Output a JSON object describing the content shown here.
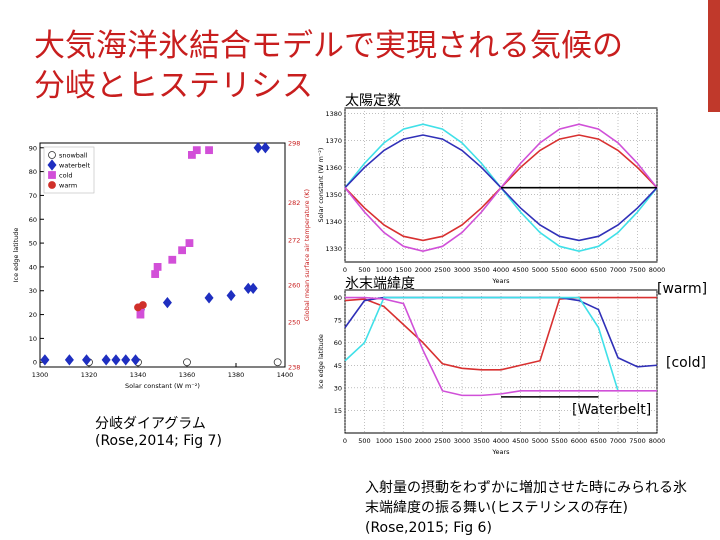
{
  "slide": {
    "title_line1": "大気海洋氷結合モデルで実現される気候の",
    "title_line2": "分岐とヒステリシス",
    "label_solar": "太陽定数",
    "label_ice": "氷末端緯度",
    "tag_warm": "[warm]",
    "tag_cold": "[cold]",
    "tag_waterbelt": "[Waterbelt]",
    "caption_left_1": "分岐ダイアグラム",
    "caption_left_2": "(Rose,2014; Fig 7)",
    "caption_right": "入射量の摂動をわずかに増加させた時にみられる氷末端緯度の振る舞い(ヒステリシスの存在) (Rose,2015; Fig 6)"
  },
  "chart_data": [
    {
      "type": "scatter",
      "xlabel": "Solar constant (W m⁻²)",
      "ylabel": "Ice edge latitude",
      "y2label": "Global mean surface air temperature (K)",
      "xlim": [
        1300,
        1400
      ],
      "ylim": [
        -2,
        92
      ],
      "xticks": [
        1300,
        1320,
        1340,
        1360,
        1380,
        1400
      ],
      "yticks": [
        0,
        10,
        20,
        30,
        40,
        50,
        60,
        70,
        80,
        90
      ],
      "y2lim": [
        238,
        298
      ],
      "y2ticks": [
        238,
        250,
        260,
        272,
        282,
        298
      ],
      "legend": "upper-left",
      "series": [
        {
          "name": "snowball",
          "color": "#ffffff",
          "marker": "circle",
          "x": [
            1320,
            1340,
            1360,
            1397
          ],
          "values": [
            0,
            0,
            0,
            0
          ]
        },
        {
          "name": "waterbelt",
          "color": "#1f2fc0",
          "marker": "diamond",
          "x": [
            1302,
            1312,
            1319,
            1327,
            1331,
            1335,
            1339,
            1341,
            1352,
            1369,
            1378,
            1385,
            1387,
            1389,
            1392
          ],
          "values": [
            1,
            1,
            1,
            1,
            1,
            1,
            1,
            22,
            25,
            27,
            28,
            31,
            31,
            90,
            90
          ]
        },
        {
          "name": "cold",
          "color": "#d24fd8",
          "marker": "square",
          "x": [
            1341,
            1341,
            1347,
            1348,
            1354,
            1358,
            1361,
            1362,
            1364,
            1369
          ],
          "values": [
            20,
            23,
            37,
            40,
            43,
            47,
            50,
            87,
            89,
            89
          ]
        },
        {
          "name": "warm",
          "color": "#d0302a",
          "marker": "circle",
          "x": [
            1340,
            1342
          ],
          "values": [
            23,
            24
          ]
        }
      ]
    },
    {
      "type": "line",
      "xlabel": "Years",
      "ylabel": "Solar constant (W m⁻²)",
      "xlim": [
        0,
        8000
      ],
      "ylim": [
        1325,
        1382
      ],
      "xticks": [
        0,
        500,
        1000,
        1500,
        2000,
        2500,
        3000,
        3500,
        4000,
        4500,
        5000,
        5500,
        6000,
        6500,
        7000,
        7500,
        8000
      ],
      "yticks": [
        1330,
        1340,
        1350,
        1360,
        1370,
        1380
      ],
      "x": [
        0,
        500,
        1000,
        1500,
        2000,
        2500,
        3000,
        3500,
        4000,
        4500,
        5000,
        5500,
        6000,
        6500,
        7000,
        7500,
        8000
      ],
      "series": [
        {
          "color": "#40e0e8",
          "values": [
            1352.5,
            1361.5,
            1369.1,
            1374.2,
            1376,
            1374.2,
            1369.1,
            1361.5,
            1352.5,
            1343.5,
            1335.9,
            1330.8,
            1329,
            1330.8,
            1335.9,
            1343.5,
            1352.5
          ]
        },
        {
          "color": "#3030b8",
          "values": [
            1352.5,
            1360,
            1366.3,
            1370.5,
            1372,
            1370.5,
            1366.3,
            1360,
            1352.5,
            1345,
            1338.7,
            1334.5,
            1333,
            1334.5,
            1338.7,
            1345,
            1352.5
          ]
        },
        {
          "color": "#d83030",
          "values": [
            1352.5,
            1345,
            1338.7,
            1334.5,
            1333,
            1334.5,
            1338.7,
            1345,
            1352.5,
            1360,
            1366.3,
            1370.5,
            1372,
            1370.5,
            1366.3,
            1360,
            1352.5
          ]
        },
        {
          "color": "#d050d8",
          "values": [
            1352.5,
            1343.5,
            1335.9,
            1330.8,
            1329,
            1330.8,
            1335.9,
            1343.5,
            1352.5,
            1361.5,
            1369.1,
            1374.2,
            1376,
            1374.2,
            1369.1,
            1361.5,
            1352.5
          ]
        },
        {
          "color": "#000000",
          "values": [
            null,
            null,
            null,
            null,
            null,
            null,
            null,
            null,
            1352.5,
            1352.5,
            1352.5,
            1352.5,
            1352.5,
            1352.5,
            1352.5,
            1352.5,
            1352.5
          ]
        }
      ]
    },
    {
      "type": "line",
      "xlabel": "Years",
      "ylabel": "Ice edge latitude",
      "xlim": [
        0,
        8000
      ],
      "ylim": [
        0,
        95
      ],
      "xticks": [
        0,
        500,
        1000,
        1500,
        2000,
        2500,
        3000,
        3500,
        4000,
        4500,
        5000,
        5500,
        6000,
        6500,
        7000,
        7500,
        8000
      ],
      "yticks": [
        15,
        30,
        45,
        60,
        75,
        90
      ],
      "x": [
        0,
        500,
        1000,
        1500,
        2000,
        2500,
        3000,
        3500,
        4000,
        4500,
        5000,
        5500,
        6000,
        6500,
        7000,
        7500,
        8000
      ],
      "series": [
        {
          "color": "#d83030",
          "values": [
            88,
            89,
            84,
            72,
            60,
            46,
            43,
            42,
            42,
            45,
            48,
            89,
            90,
            90,
            90,
            90,
            90
          ]
        },
        {
          "color": "#3030b8",
          "values": [
            70,
            88,
            90,
            90,
            90,
            90,
            90,
            90,
            90,
            90,
            90,
            90,
            88,
            82,
            50,
            44,
            45
          ]
        },
        {
          "color": "#40e0e8",
          "values": [
            48,
            60,
            90,
            90,
            90,
            90,
            90,
            90,
            90,
            90,
            90,
            90,
            90,
            70,
            28,
            null,
            null
          ]
        },
        {
          "color": "#d050d8",
          "values": [
            90,
            90,
            89,
            86,
            55,
            28,
            25,
            25,
            26,
            28,
            28,
            28,
            28,
            28,
            28,
            28,
            28
          ]
        },
        {
          "color": "#000000",
          "values": [
            null,
            null,
            null,
            null,
            null,
            null,
            null,
            null,
            24,
            24,
            24,
            24,
            24,
            24,
            null,
            null,
            null
          ]
        }
      ]
    }
  ]
}
